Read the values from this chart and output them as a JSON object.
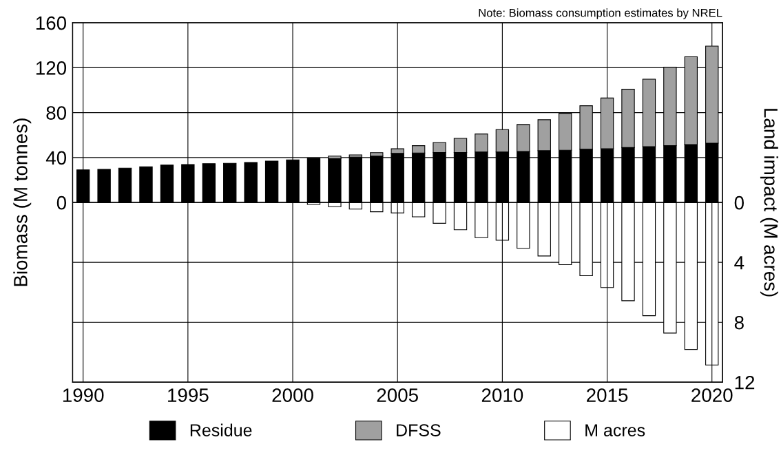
{
  "chart_data": {
    "type": "bar",
    "stacked": true,
    "x": [
      1990,
      1991,
      1992,
      1993,
      1994,
      1995,
      1996,
      1997,
      1998,
      1999,
      2000,
      2001,
      2002,
      2003,
      2004,
      2005,
      2006,
      2007,
      2008,
      2009,
      2010,
      2011,
      2012,
      2013,
      2014,
      2015,
      2016,
      2017,
      2018,
      2019,
      2020
    ],
    "series": [
      {
        "name": "Residue",
        "color": "#000000",
        "values": [
          29,
          29.5,
          30.6,
          31.8,
          33.3,
          33.8,
          34.5,
          34.9,
          35.6,
          36.8,
          37.9,
          39.5,
          39,
          40.4,
          41.3,
          43.7,
          44.1,
          44.5,
          44.5,
          45,
          45,
          45.4,
          46.1,
          46.5,
          47.4,
          47.8,
          48.9,
          49.7,
          50.6,
          51.5,
          52.8
        ]
      },
      {
        "name": "DFSS",
        "color": "#a0a0a0",
        "values": [
          null,
          null,
          null,
          null,
          null,
          null,
          null,
          null,
          null,
          null,
          null,
          null,
          2.3,
          2.0,
          3.1,
          4.1,
          6.5,
          8.9,
          12.6,
          16,
          19.9,
          24,
          27.6,
          32.9,
          38.7,
          45.2,
          51.9,
          60.1,
          69.8,
          78.2,
          86.4
        ]
      },
      {
        "name": "M acres",
        "color": "#ffffff",
        "axis": "y2",
        "values": [
          null,
          null,
          null,
          null,
          null,
          null,
          null,
          null,
          null,
          null,
          null,
          0.13,
          0.28,
          0.44,
          0.62,
          0.7,
          0.96,
          1.39,
          1.82,
          2.35,
          2.52,
          3.06,
          3.57,
          4.15,
          4.89,
          5.68,
          6.56,
          7.56,
          8.72,
          9.81,
          10.85
        ]
      }
    ],
    "ylabel": "Biomass (M tonnes)",
    "y2label": "Land impact (M acres)",
    "xlim": [
      1989.5,
      2020.5
    ],
    "xticks": [
      1990,
      1995,
      2000,
      2005,
      2010,
      2015,
      2020
    ],
    "ylim": [
      -160,
      160
    ],
    "yticks": [
      0,
      40,
      80,
      120,
      160
    ],
    "y2lim": [
      12,
      -12
    ],
    "y2ticks": [
      0,
      4,
      8,
      12
    ],
    "grid": true,
    "legend": "bottom",
    "annotations": [
      "Note: Biomass consumption estimates by NREL"
    ]
  }
}
